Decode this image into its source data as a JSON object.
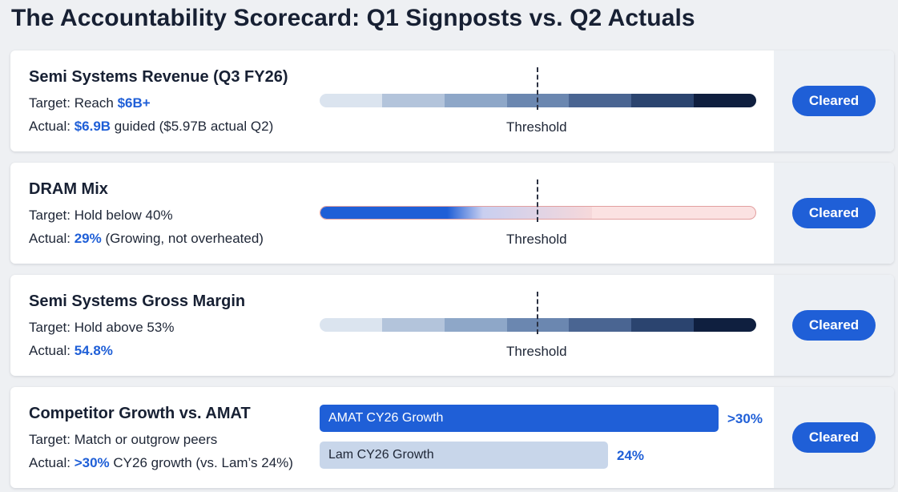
{
  "page": {
    "title": "The Accountability Scorecard: Q1 Signposts vs. Q2 Actuals"
  },
  "colors": {
    "accent": "#1f5fd7",
    "status_column": "#edf0f4",
    "bar_gradient": [
      "#dbe4ef",
      "#b3c4db",
      "#8ea7c8",
      "#6b87b0",
      "#4a6592",
      "#2b446f",
      "#0f1f3f"
    ],
    "dram_alert": "#fbe2e2"
  },
  "cards": [
    {
      "title": "Semi Systems Revenue (Q3 FY26)",
      "target_prefix": "Target: ",
      "target_text": "Reach ",
      "target_value": "$6B+",
      "actual_prefix": "Actual: ",
      "actual_value": "$6.9B",
      "actual_text": " guided ($5.97B actual Q2)",
      "threshold_label": "Threshold",
      "status": "Cleared"
    },
    {
      "title": "DRAM Mix",
      "target_prefix": "Target: ",
      "target_text": "Hold below 40%",
      "actual_prefix": "Actual: ",
      "actual_value": "29%",
      "actual_text": " (Growing, not overheated)",
      "threshold_label": "Threshold",
      "fill_fraction": 0.375,
      "status": "Cleared"
    },
    {
      "title": "Semi Systems Gross Margin",
      "target_prefix": "Target: ",
      "target_text": "Hold above 53%",
      "actual_prefix": "Actual: ",
      "actual_value": "54.8%",
      "threshold_label": "Threshold",
      "status": "Cleared"
    },
    {
      "title": "Competitor Growth vs. AMAT",
      "target_prefix": "Target: ",
      "target_text": "Match or outgrow peers",
      "actual_prefix": "Actual: ",
      "actual_value": ">30%",
      "actual_text": " CY26 growth (vs. Lam’s 24%)",
      "bars": [
        {
          "label": "AMAT CY26 Growth",
          "value_label": ">30%",
          "value": 30
        },
        {
          "label": "Lam CY26 Growth",
          "value_label": "24%",
          "value": 24
        }
      ],
      "status": "Cleared"
    }
  ]
}
